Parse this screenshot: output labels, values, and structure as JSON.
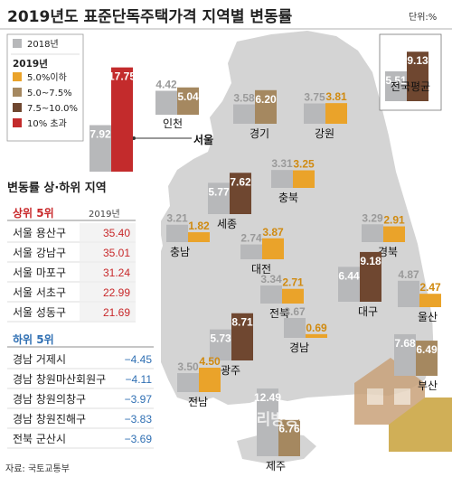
{
  "title": "2019년도 표준단독주택가격 지역별 변동률",
  "unit": "단위:%",
  "legend": {
    "y2018": "2018년",
    "y2019": "2019년",
    "bins": [
      {
        "label": "5.0%이하",
        "color": "#eaa32a"
      },
      {
        "label": "5.0~7.5%",
        "color": "#a58860"
      },
      {
        "label": "7.5~10.0%",
        "color": "#6f4730"
      },
      {
        "label": "10% 초과",
        "color": "#c32b2c"
      }
    ],
    "color_2018": "#b7b8ba"
  },
  "chart_data": {
    "type": "bar",
    "title": "2019년도 표준단독주택가격 지역별 변동률",
    "ylabel": "단위:%",
    "series_names": [
      "2018년",
      "2019년"
    ],
    "regions": [
      {
        "name": "서울",
        "v2018": 7.92,
        "v2019": 17.75
      },
      {
        "name": "인천",
        "v2018": 4.42,
        "v2019": 5.04
      },
      {
        "name": "경기",
        "v2018": 3.58,
        "v2019": 6.2
      },
      {
        "name": "강원",
        "v2018": 3.75,
        "v2019": 3.81
      },
      {
        "name": "충북",
        "v2018": 3.31,
        "v2019": 3.25
      },
      {
        "name": "세종",
        "v2018": 5.77,
        "v2019": 7.62
      },
      {
        "name": "충남",
        "v2018": 3.21,
        "v2019": 1.82
      },
      {
        "name": "대전",
        "v2018": 2.74,
        "v2019": 3.87
      },
      {
        "name": "경북",
        "v2018": 3.29,
        "v2019": 2.91
      },
      {
        "name": "대구",
        "v2018": 6.44,
        "v2019": 9.18
      },
      {
        "name": "전북",
        "v2018": 3.34,
        "v2019": 2.71
      },
      {
        "name": "울산",
        "v2018": 4.87,
        "v2019": 2.47
      },
      {
        "name": "광주",
        "v2018": 5.73,
        "v2019": 8.71
      },
      {
        "name": "경남",
        "v2018": 3.67,
        "v2019": 0.69
      },
      {
        "name": "부산",
        "v2018": 7.68,
        "v2019": 6.49
      },
      {
        "name": "전남",
        "v2018": 3.5,
        "v2019": 4.5
      },
      {
        "name": "제주",
        "v2018": 12.49,
        "v2019": 6.76
      },
      {
        "name": "전국평균",
        "v2018": 5.51,
        "v2019": 9.13
      }
    ]
  },
  "table": {
    "title": "변동률 상·하위 지역",
    "top_label": "상위 5위",
    "year_label": "2019년",
    "top": [
      {
        "name": "서울 용산구",
        "value": "35.40"
      },
      {
        "name": "서울 강남구",
        "value": "35.01"
      },
      {
        "name": "서울 마포구",
        "value": "31.24"
      },
      {
        "name": "서울 서초구",
        "value": "22.99"
      },
      {
        "name": "서울 성동구",
        "value": "21.69"
      }
    ],
    "bottom_label": "하위 5위",
    "bottom": [
      {
        "name": "경남 거제시",
        "value": "−4.45"
      },
      {
        "name": "경남 창원마산회원구",
        "value": "−4.11"
      },
      {
        "name": "경남 창원의창구",
        "value": "−3.97"
      },
      {
        "name": "경남 창원진해구",
        "value": "−3.83"
      },
      {
        "name": "전북 군산시",
        "value": "−3.69"
      }
    ]
  },
  "source": "자료: 국토교통부",
  "watermark": "우리방송뉴스"
}
